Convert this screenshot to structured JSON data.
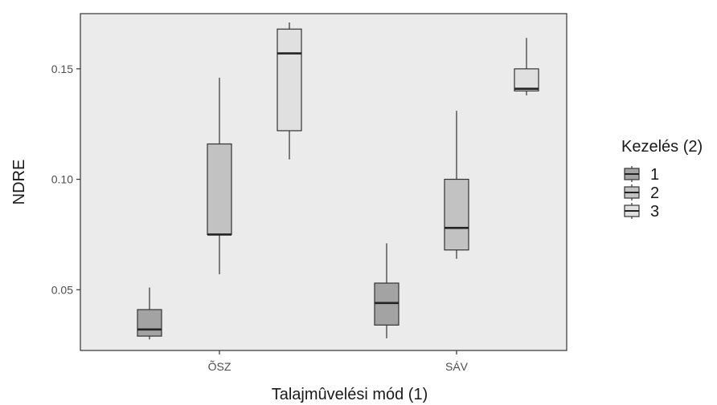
{
  "chart_data": {
    "type": "boxplot",
    "xlabel": "Talajmûvelési mód (1)",
    "ylabel": "NDRE",
    "ylim": [
      0.0225,
      0.175
    ],
    "yticks": [
      0.05,
      0.1,
      0.15
    ],
    "ytick_labels": [
      "0.05",
      "0.10",
      "0.15"
    ],
    "categories": [
      "ÕSZ",
      "SÁV"
    ],
    "legend": {
      "title": "Kezelés (2)",
      "entries": [
        "1",
        "2",
        "3"
      ],
      "position": "right"
    },
    "colors": {
      "panel_bg": "#ebebeb",
      "box_fills": [
        "#a3a3a3",
        "#c2c2c2",
        "#e0e0e0"
      ],
      "line": "#333333"
    },
    "series": [
      {
        "name": "1",
        "boxes": [
          {
            "category": "ÕSZ",
            "whislo": 0.0275,
            "q1": 0.029,
            "med": 0.032,
            "q3": 0.041,
            "whishi": 0.051
          },
          {
            "category": "SÁV",
            "whislo": 0.028,
            "q1": 0.034,
            "med": 0.044,
            "q3": 0.053,
            "whishi": 0.071
          }
        ]
      },
      {
        "name": "2",
        "boxes": [
          {
            "category": "ÕSZ",
            "whislo": 0.057,
            "q1": 0.075,
            "med": 0.075,
            "q3": 0.116,
            "whishi": 0.146
          },
          {
            "category": "SÁV",
            "whislo": 0.064,
            "q1": 0.068,
            "med": 0.078,
            "q3": 0.1,
            "whishi": 0.131
          }
        ]
      },
      {
        "name": "3",
        "boxes": [
          {
            "category": "ÕSZ",
            "whislo": 0.109,
            "q1": 0.122,
            "med": 0.157,
            "q3": 0.168,
            "whishi": 0.171
          },
          {
            "category": "SÁV",
            "whislo": 0.138,
            "q1": 0.14,
            "med": 0.141,
            "q3": 0.15,
            "whishi": 0.164
          }
        ]
      }
    ]
  }
}
